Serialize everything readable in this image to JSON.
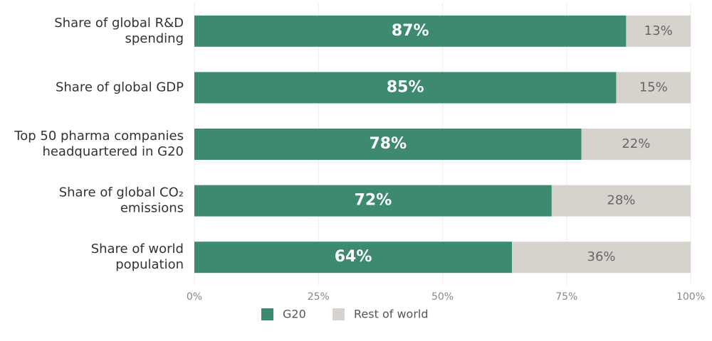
{
  "chart_data": {
    "type": "stacked-barh",
    "categories": [
      "Share of global R&D\nspending",
      "Share of global GDP",
      "Top 50 pharma companies\nheadquartered in G20",
      "Share of global CO₂\nemissions",
      "Share of world\npopulation"
    ],
    "series": [
      {
        "name": "G20",
        "color": "#3d8a6e",
        "values": [
          87,
          85,
          78,
          72,
          64
        ],
        "value_labels": [
          "87%",
          "85%",
          "78%",
          "72%",
          "64%"
        ]
      },
      {
        "name": "Rest of world",
        "color": "#d6d3cc",
        "values": [
          13,
          15,
          22,
          28,
          36
        ],
        "value_labels": [
          "13%",
          "15%",
          "22%",
          "28%",
          "36%"
        ]
      }
    ],
    "xlim": [
      0,
      100
    ],
    "xticks": [
      {
        "value": 0,
        "label": "0%"
      },
      {
        "value": 25,
        "label": "25%"
      },
      {
        "value": 50,
        "label": "50%"
      },
      {
        "value": 75,
        "label": "75%"
      },
      {
        "value": 100,
        "label": "100%"
      }
    ],
    "grid": true
  }
}
